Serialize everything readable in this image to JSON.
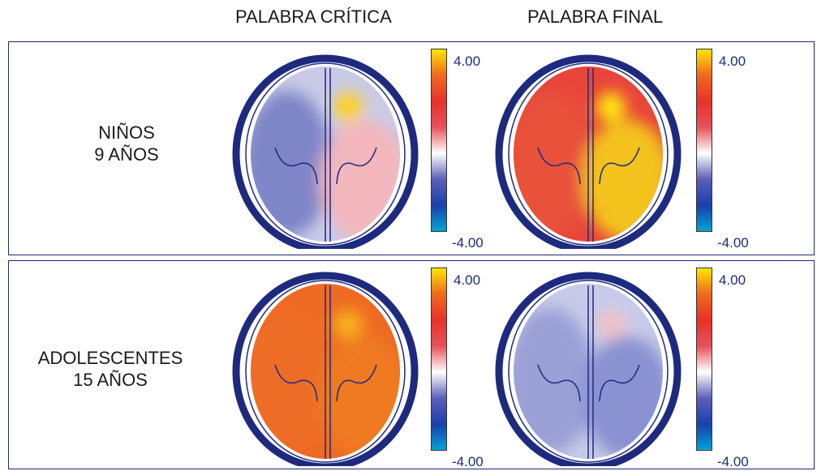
{
  "column_titles": [
    "PALABRA CRÍTICA",
    "PALABRA FINAL"
  ],
  "rows": [
    {
      "label_line1": "NIÑOS",
      "label_line2": "9 AÑOS"
    },
    {
      "label_line1": "ADOLESCENTES",
      "label_line2": "15 AÑOS"
    }
  ],
  "colorbar": {
    "max_label": "4.00",
    "min_label": "-4.00",
    "max": 4.0,
    "min": -4.0,
    "colors": [
      "#00a6d6",
      "#1b3fae",
      "#5b5fb8",
      "#ffffff",
      "#e8505a",
      "#e83228",
      "#f06a1c",
      "#ffe800"
    ]
  },
  "maps": [
    {
      "row": 0,
      "col": 0,
      "description_color": "mixed",
      "base_color": "#c9cbe6",
      "left_color": "#7f86c8",
      "right_color": "#f3b7bd",
      "hotspot_color": "#ffd21a"
    },
    {
      "row": 0,
      "col": 1,
      "base_color": "#e8453a",
      "left_color": "#e9513a",
      "right_color": "#f3c21c",
      "hotspot_color": "#ffe90a"
    },
    {
      "row": 1,
      "col": 0,
      "base_color": "#ef6a24",
      "left_color": "#ee6d26",
      "right_color": "#ef7a22",
      "hotspot_color": "#f7b21a"
    },
    {
      "row": 1,
      "col": 1,
      "base_color": "#c7cbe8",
      "left_color": "#9aa0d6",
      "right_color": "#8a92d2",
      "hotspot_color": "#f3c2c8"
    }
  ],
  "head_outline_color": "#1d2a7e",
  "fissure_color": "#1d2a7e"
}
